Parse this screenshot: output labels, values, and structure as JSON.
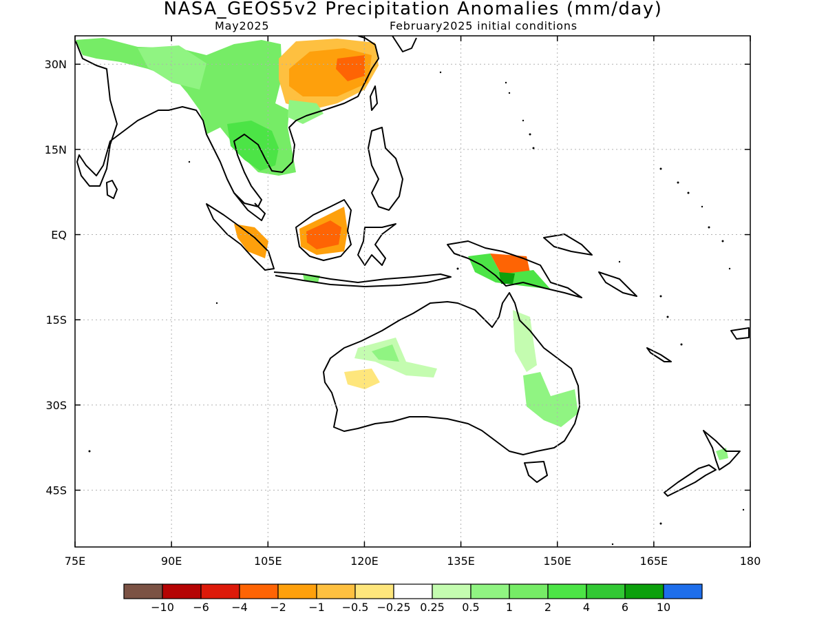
{
  "header": {
    "title": "NASA_GEOS5v2 Precipitation Anomalies (mm/day)",
    "valid_month": "May2025",
    "init_conditions": "February2025 initial conditions"
  },
  "map": {
    "lon_range": [
      75,
      180
    ],
    "lat_range": [
      -55,
      35
    ],
    "lon_ticks": [
      "75E",
      "90E",
      "105E",
      "120E",
      "135E",
      "150E",
      "165E",
      "180"
    ],
    "lat_ticks": [
      "30N",
      "15N",
      "EQ",
      "15S",
      "30S",
      "45S"
    ],
    "lat_tick_values": [
      30,
      15,
      0,
      -15,
      -30,
      -45
    ],
    "lon_tick_values": [
      75,
      90,
      105,
      120,
      135,
      150,
      165,
      180
    ],
    "grid": "dotted"
  },
  "colorbar": {
    "colors": [
      "#7b5244",
      "#b50404",
      "#dd1a0a",
      "#fe6404",
      "#fea00c",
      "#fec040",
      "#fee67c",
      "#ffffff",
      "#c4fcb0",
      "#90f482",
      "#76ec66",
      "#4ce446",
      "#32c834",
      "#0ca00c",
      "#1e6eeb"
    ],
    "labels": [
      "-10",
      "-6",
      "-4",
      "-2",
      "-1",
      "-0.5",
      "-0.25",
      "0.25",
      "0.5",
      "1",
      "2",
      "4",
      "6",
      "10"
    ]
  }
}
